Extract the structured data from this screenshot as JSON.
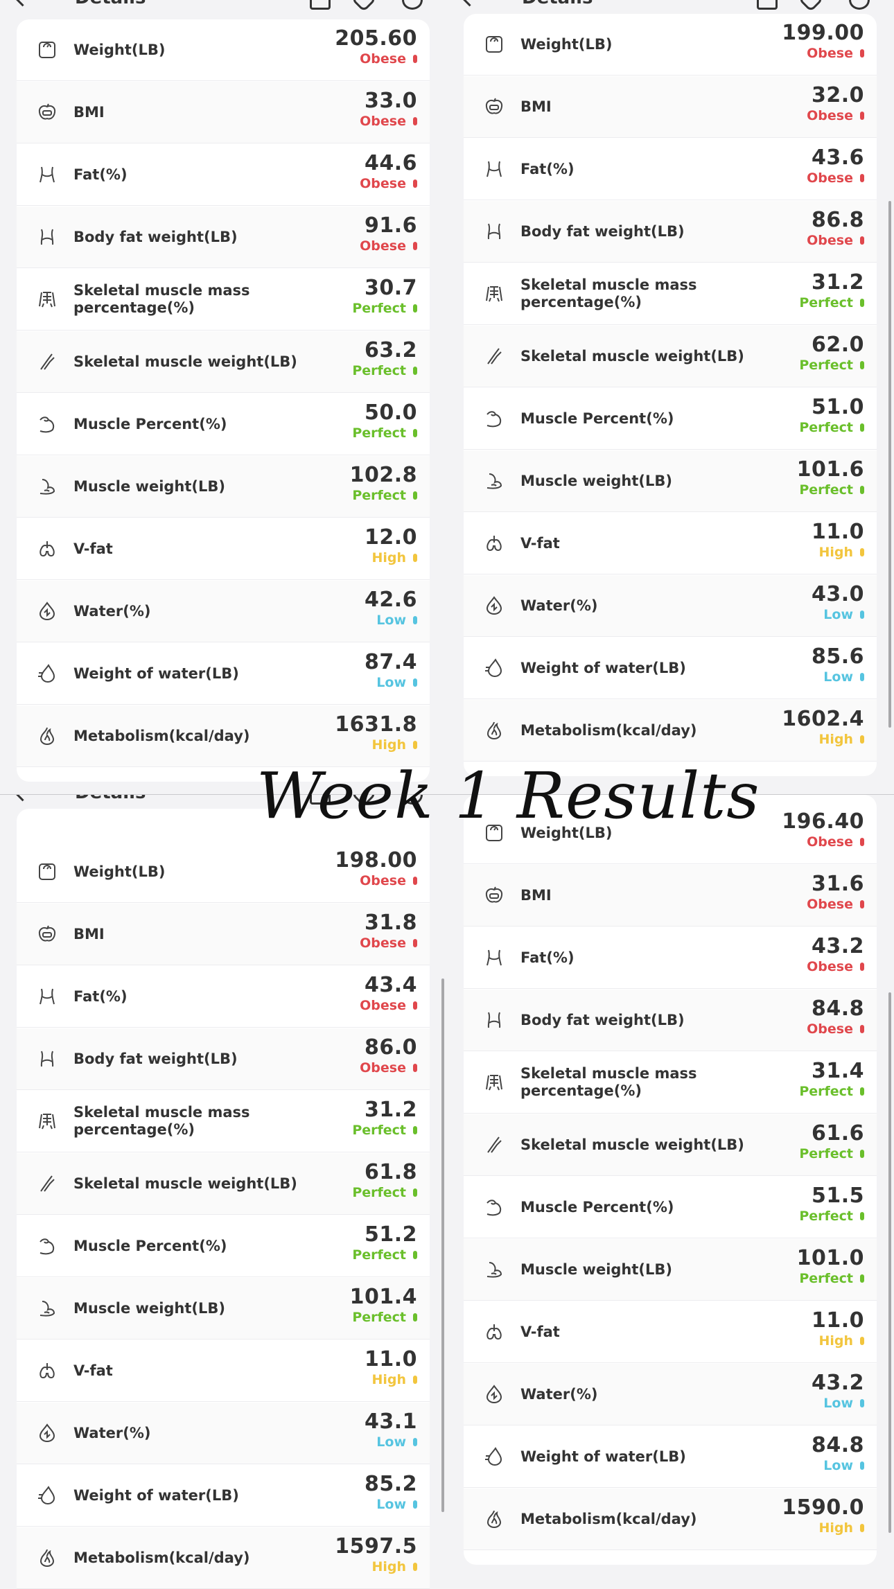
{
  "header": {
    "title": "Details"
  },
  "banner": {
    "text": "Week 1 Results"
  },
  "colors": {
    "obese": "#e0474c",
    "perfect": "#6abf2b",
    "high": "#f2c53d",
    "low": "#56c4e0",
    "text": "#333333"
  },
  "labels": [
    "Weight(LB)",
    "BMI",
    "Fat(%)",
    "Body fat weight(LB)",
    "Skeletal muscle mass percentage(%)",
    "Skeletal muscle weight(LB)",
    "Muscle Percent(%)",
    "Muscle weight(LB)",
    "V-fat",
    "Water(%)",
    "Weight of water(LB)",
    "Metabolism(kcal/day)"
  ],
  "icons": [
    "scale-icon",
    "apple-scale-icon",
    "torso-fat-icon",
    "waist-fat-icon",
    "skeleton-torso-icon",
    "bone-icon",
    "flexed-arm-icon",
    "arm-muscle-icon",
    "lungs-icon",
    "water-drop-icon",
    "droplet-swirl-icon",
    "flame-icon"
  ],
  "panels": [
    {
      "values": [
        "205.60",
        "33.0",
        "44.6",
        "91.6",
        "30.7",
        "63.2",
        "50.0",
        "102.8",
        "12.0",
        "42.6",
        "87.4",
        "1631.8"
      ],
      "statuses": [
        "Obese",
        "Obese",
        "Obese",
        "Obese",
        "Perfect",
        "Perfect",
        "Perfect",
        "Perfect",
        "High",
        "Low",
        "Low",
        "High"
      ]
    },
    {
      "values": [
        "199.00",
        "32.0",
        "43.6",
        "86.8",
        "31.2",
        "62.0",
        "51.0",
        "101.6",
        "11.0",
        "43.0",
        "85.6",
        "1602.4"
      ],
      "statuses": [
        "Obese",
        "Obese",
        "Obese",
        "Obese",
        "Perfect",
        "Perfect",
        "Perfect",
        "Perfect",
        "High",
        "Low",
        "Low",
        "High"
      ]
    },
    {
      "values": [
        "198.00",
        "31.8",
        "43.4",
        "86.0",
        "31.2",
        "61.8",
        "51.2",
        "101.4",
        "11.0",
        "43.1",
        "85.2",
        "1597.5"
      ],
      "statuses": [
        "Obese",
        "Obese",
        "Obese",
        "Obese",
        "Perfect",
        "Perfect",
        "Perfect",
        "Perfect",
        "High",
        "Low",
        "Low",
        "High"
      ]
    },
    {
      "values": [
        "196.40",
        "31.6",
        "43.2",
        "84.8",
        "31.4",
        "61.6",
        "51.5",
        "101.0",
        "11.0",
        "43.2",
        "84.8",
        "1590.0"
      ],
      "statuses": [
        "Obese",
        "Obese",
        "Obese",
        "Obese",
        "Perfect",
        "Perfect",
        "Perfect",
        "Perfect",
        "High",
        "Low",
        "Low",
        "High"
      ]
    }
  ]
}
